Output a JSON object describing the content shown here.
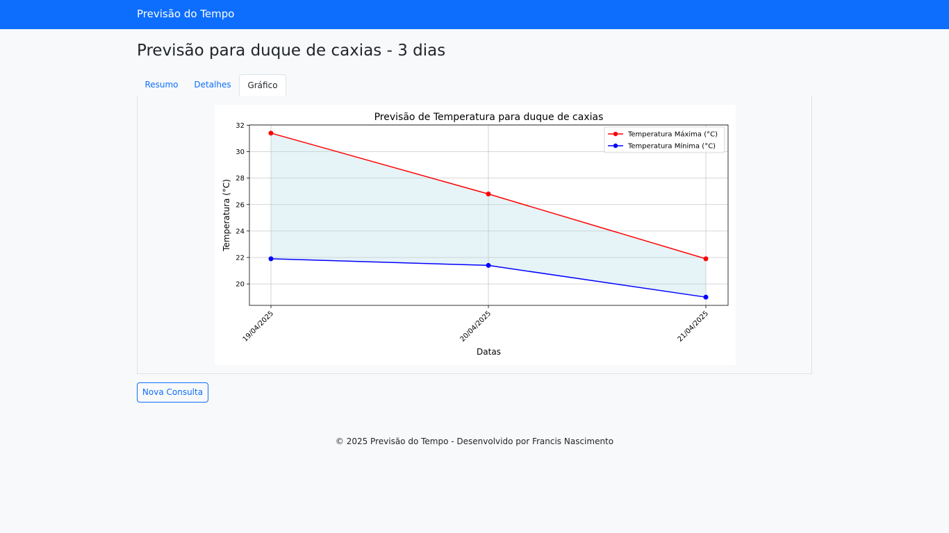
{
  "navbar": {
    "brand": "Previsão do Tempo"
  },
  "page": {
    "title": "Previsão para duque de caxias - 3 dias"
  },
  "tabs": [
    {
      "label": "Resumo",
      "active": false
    },
    {
      "label": "Detalhes",
      "active": false
    },
    {
      "label": "Gráfico",
      "active": true
    }
  ],
  "actions": {
    "new_query_label": "Nova Consulta"
  },
  "footer": {
    "text": "© 2025 Previsão do Tempo - Desenvolvido por Francis Nascimento"
  },
  "colors": {
    "primary": "#0d6efd",
    "max_series": "#ff0000",
    "min_series": "#0000ff",
    "fill": "#add8e6"
  },
  "chart_data": {
    "type": "line",
    "title": "Previsão de Temperatura para duque de caxias",
    "xlabel": "Datas",
    "ylabel": "Temperatura (°C)",
    "categories": [
      "19/04/2025",
      "20/04/2025",
      "21/04/2025"
    ],
    "series": [
      {
        "name": "Temperatura Máxima (°C)",
        "color": "#ff0000",
        "values": [
          31.4,
          26.8,
          21.9
        ]
      },
      {
        "name": "Temperatura Mínima (°C)",
        "color": "#0000ff",
        "values": [
          21.9,
          21.4,
          19.0
        ]
      }
    ],
    "yticks": [
      20,
      22,
      24,
      26,
      28,
      30,
      32
    ],
    "ylim": [
      18.38,
      32.02
    ],
    "grid": true,
    "fill_between": true,
    "legend_position": "top-right"
  }
}
